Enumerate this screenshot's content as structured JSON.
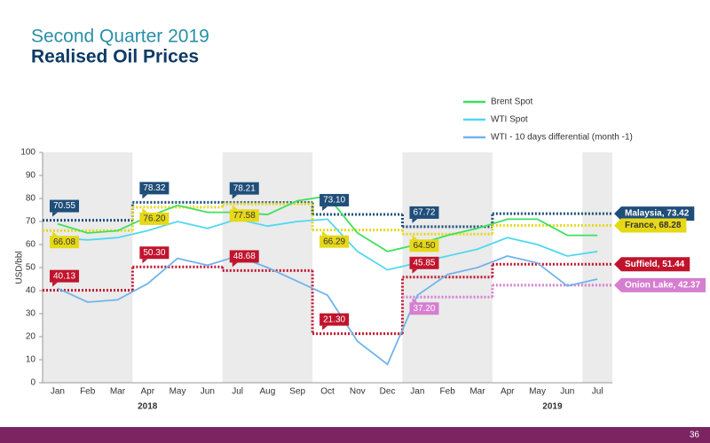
{
  "chart_data": {
    "type": "line",
    "title": "Second Quarter 2019",
    "subtitle": "Realised Oil Prices",
    "y_label": "USD/bbl",
    "categories": [
      "Jan",
      "Feb",
      "Mar",
      "Apr",
      "May",
      "Jun",
      "Jul",
      "Aug",
      "Sep",
      "Oct",
      "Nov",
      "Dec",
      "Jan",
      "Feb",
      "Mar",
      "Apr",
      "May",
      "Jun",
      "Jul"
    ],
    "years": [
      "2018",
      "2019"
    ],
    "ylim": [
      0,
      100
    ],
    "yticks": [
      0,
      10,
      20,
      30,
      40,
      50,
      60,
      70,
      80,
      90,
      100
    ],
    "series": [
      {
        "name": "Brent Spot",
        "color": "#3ee05c",
        "values": [
          69,
          65,
          66,
          72,
          77,
          74,
          74,
          73,
          79,
          81,
          65,
          57,
          60,
          64,
          67,
          71,
          71,
          64,
          64
        ]
      },
      {
        "name": "WTI Spot",
        "color": "#4fd8f2",
        "values": [
          63,
          62,
          63,
          66,
          70,
          67,
          71,
          68,
          70,
          71,
          57,
          49,
          52,
          55,
          58,
          63,
          60,
          55,
          57
        ]
      },
      {
        "name": "WTI - 10 days differential (month -1)",
        "color": "#72b4ea",
        "values": [
          41,
          35,
          36,
          43,
          54,
          51,
          55,
          50,
          44,
          38,
          18,
          8,
          38,
          47,
          50,
          55,
          52,
          42,
          45
        ]
      }
    ],
    "realised": [
      {
        "color": "#1f4e79",
        "values": [
          70.55,
          78.32,
          78.21,
          73.1,
          67.72,
          73.42
        ],
        "value_labels": [
          "70.55",
          "78.32",
          "78.21",
          "73.10",
          "67.72",
          "Malaysia, 73.42"
        ]
      },
      {
        "color": "#e6d817",
        "values": [
          66.08,
          76.2,
          77.58,
          66.29,
          64.5,
          68.28
        ],
        "value_labels": [
          "66.08",
          "76.20",
          "77.58",
          "66.29",
          "64.50",
          "France, 68.28"
        ]
      },
      {
        "color": "#c0142d",
        "values": [
          40.13,
          50.3,
          48.68,
          21.3,
          45.85,
          51.44
        ],
        "value_labels": [
          "40.13",
          "50.30",
          "48.68",
          "21.30",
          "45.85",
          "Suffield, 51.44"
        ]
      },
      {
        "color": "#d67ed0",
        "values": [
          null,
          null,
          null,
          null,
          37.2,
          42.37
        ],
        "value_labels": [
          null,
          null,
          null,
          null,
          "37.20",
          "Onion Lake, 42.37"
        ]
      }
    ]
  },
  "page_number": "36"
}
